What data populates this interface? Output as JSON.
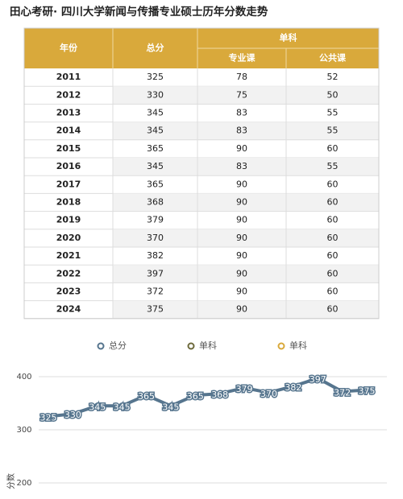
{
  "title": "田心考研· 四川大学新闻与传播专业硕士历年分数走势",
  "table": {
    "header": {
      "year": "年份",
      "total": "总分",
      "single": "单科",
      "major": "专业课",
      "public": "公共课"
    },
    "rows": [
      [
        "2011",
        325,
        78,
        52
      ],
      [
        "2012",
        330,
        75,
        50
      ],
      [
        "2013",
        345,
        83,
        55
      ],
      [
        "2014",
        345,
        83,
        55
      ],
      [
        "2015",
        365,
        90,
        60
      ],
      [
        "2016",
        345,
        83,
        55
      ],
      [
        "2017",
        365,
        90,
        60
      ],
      [
        "2018",
        368,
        90,
        60
      ],
      [
        "2019",
        379,
        90,
        60
      ],
      [
        "2020",
        370,
        90,
        60
      ],
      [
        "2021",
        382,
        90,
        60
      ],
      [
        "2022",
        397,
        90,
        60
      ],
      [
        "2023",
        372,
        90,
        60
      ],
      [
        "2024",
        375,
        90,
        60
      ]
    ]
  },
  "chart_data": {
    "type": "line",
    "y_label": "分数",
    "series": [
      {
        "name": "总分",
        "color": "#56758e",
        "values": [
          325,
          330,
          345,
          345,
          365,
          345,
          365,
          368,
          379,
          370,
          382,
          397,
          372,
          375
        ]
      },
      {
        "name": "单科",
        "color": "#6d6a3c"
      },
      {
        "name": "单科",
        "color": "#d9a93b"
      }
    ],
    "ylim": [
      200,
      400
    ],
    "yticks": [
      200,
      300,
      400
    ],
    "grid": true
  }
}
